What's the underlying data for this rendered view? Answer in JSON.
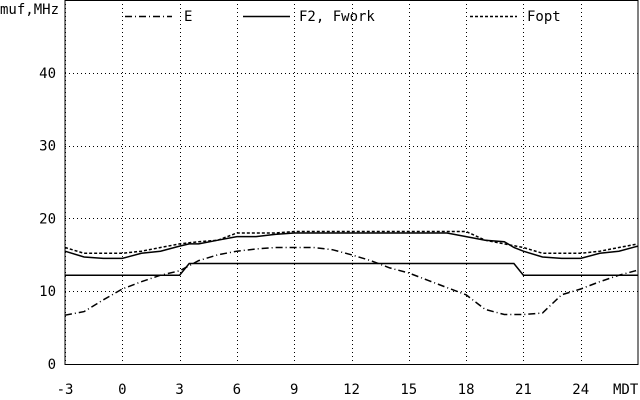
{
  "chart_data": {
    "type": "line",
    "title": "",
    "ylabel": "muf,MHz",
    "xlabel": "MDT",
    "xlim": [
      -3,
      27
    ],
    "ylim": [
      0,
      50
    ],
    "x_ticks": [
      -3,
      0,
      3,
      6,
      9,
      12,
      15,
      18,
      21,
      24
    ],
    "x_tick_labels": [
      "-3",
      "0",
      "3",
      "6",
      "9",
      "12",
      "15",
      "18",
      "21",
      "24"
    ],
    "y_ticks": [
      0,
      10,
      20,
      30,
      40
    ],
    "y_tick_labels": [
      "0",
      "10",
      "20",
      "30",
      "40"
    ],
    "grid": true,
    "legend_position": "top",
    "series": [
      {
        "name": "E",
        "style": "dashdot",
        "x": [
          -3,
          -2,
          -1,
          0,
          1,
          2,
          3,
          4,
          5,
          6,
          7,
          8,
          9,
          10,
          11,
          12,
          13,
          14,
          15,
          16,
          17,
          18,
          19,
          20,
          21,
          22,
          23,
          24,
          25,
          26,
          27
        ],
        "y": [
          6.7,
          7.2,
          8.8,
          10.3,
          11.3,
          12.2,
          12.8,
          14.2,
          15.0,
          15.5,
          15.8,
          16.0,
          16.0,
          16.0,
          15.7,
          15.0,
          14.2,
          13.2,
          12.5,
          11.5,
          10.5,
          9.5,
          7.5,
          6.8,
          6.8,
          7.0,
          9.5,
          10.3,
          11.3,
          12.2,
          12.9
        ]
      },
      {
        "name": "F2, Fwork",
        "style": "solid",
        "x": [
          -3,
          -2,
          -1,
          0,
          1,
          2,
          3,
          3.5,
          4,
          5,
          6,
          7,
          8,
          9,
          10,
          11,
          12,
          13,
          14,
          15,
          16,
          17,
          18,
          19,
          20,
          20.5,
          21,
          22,
          23,
          24,
          25,
          26,
          27
        ],
        "y": [
          15.5,
          14.7,
          14.5,
          14.5,
          15.2,
          15.5,
          16.2,
          16.5,
          16.5,
          17.0,
          17.5,
          17.5,
          17.8,
          18.0,
          18.0,
          18.0,
          18.0,
          18.0,
          18.0,
          18.0,
          18.0,
          18.0,
          17.5,
          17.0,
          16.8,
          16.0,
          15.5,
          14.7,
          14.5,
          14.5,
          15.2,
          15.5,
          16.2
        ]
      },
      {
        "name": "F2, Fwork",
        "style": "solid",
        "x": [
          -3,
          3,
          3.5,
          4,
          20.5,
          21,
          27
        ],
        "y": [
          12.2,
          12.2,
          13.8,
          13.8,
          13.8,
          12.2,
          12.2
        ]
      },
      {
        "name": "Fopt",
        "style": "dashed",
        "x": [
          -3,
          -2,
          -1,
          0,
          1,
          2,
          3,
          4,
          5,
          6,
          7,
          8,
          9,
          10,
          11,
          12,
          13,
          14,
          15,
          16,
          17,
          18,
          19,
          20,
          21,
          22,
          23,
          24,
          25,
          26,
          27
        ],
        "y": [
          16.0,
          15.2,
          15.2,
          15.2,
          15.5,
          16.0,
          16.5,
          16.8,
          17.0,
          18.0,
          18.0,
          18.0,
          18.2,
          18.2,
          18.2,
          18.2,
          18.2,
          18.2,
          18.2,
          18.2,
          18.2,
          18.2,
          17.0,
          16.5,
          16.0,
          15.2,
          15.2,
          15.2,
          15.5,
          16.0,
          16.5
        ]
      }
    ],
    "legend": [
      {
        "label": "E",
        "style": "dashdot"
      },
      {
        "label": "F2, Fwork",
        "style": "solid"
      },
      {
        "label": "Fopt",
        "style": "dashed"
      }
    ],
    "colors": {
      "line": "#000000",
      "grid": "#000000",
      "background": "#ffffff"
    }
  }
}
